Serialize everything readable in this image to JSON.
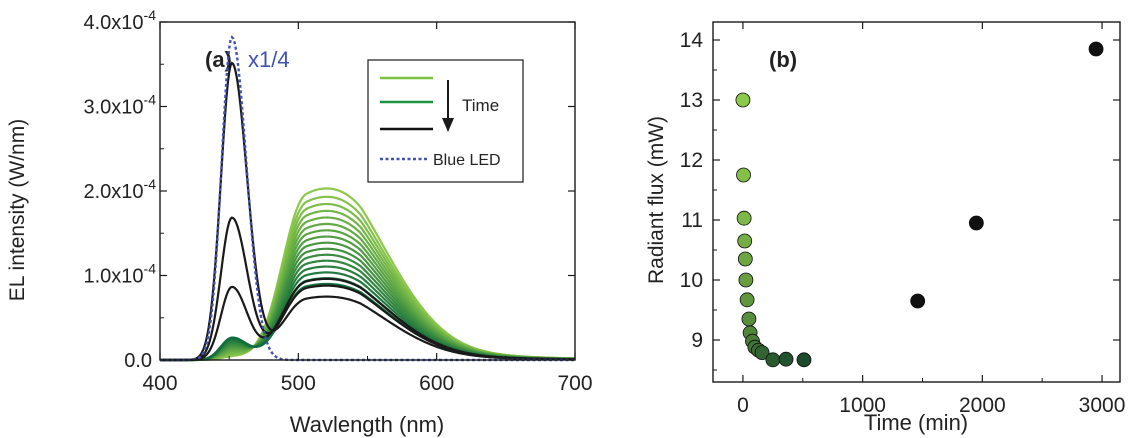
{
  "chart_data": [
    {
      "type": "line",
      "panel_label": "(a)",
      "xlabel": "Wavlength (nm)",
      "ylabel": "EL intensity (W/nm)",
      "xlim": [
        400,
        700
      ],
      "ylim": [
        0,
        0.0004
      ],
      "x_ticks": [
        400,
        500,
        600,
        700
      ],
      "x_tick_labels": [
        "400",
        "500",
        "600",
        "700"
      ],
      "y_ticks": [
        0,
        0.0001,
        0.0002,
        0.0003,
        0.0004
      ],
      "y_tick_labels": [
        {
          "base": "0.0",
          "exp": ""
        },
        {
          "base": "1.0x10",
          "exp": "-4"
        },
        {
          "base": "2.0x10",
          "exp": "-4"
        },
        {
          "base": "3.0x10",
          "exp": "-4"
        },
        {
          "base": "4.0x10",
          "exp": "-4"
        }
      ],
      "annotation": "x1/4",
      "legend": {
        "placement": "top-right",
        "arrow_label": "Time",
        "blue_label": "Blue LED",
        "sample_colors": [
          "#7cc242",
          "#1f9440",
          "#111111"
        ]
      },
      "colors": {
        "blue": "#4152b3",
        "green_start": "#8cc84a",
        "green_end": "#116d3b",
        "black": "#1a1a1a"
      },
      "blue_led": {
        "name": "Blue LED",
        "style": "dotted",
        "scale": "x1/4",
        "peak_x": 452,
        "peak_y": 0.000382
      },
      "green_curves": {
        "count": 16,
        "peak_x": 506,
        "peak_y_range": [
          0.000203,
          9e-05
        ],
        "blue_residual_range": [
          3.5e-06,
          2.6e-05
        ]
      },
      "black_curves": [
        {
          "blue_peak_y": 0.000351,
          "green_peak_y": 7.5e-05
        },
        {
          "blue_peak_y": 0.000168,
          "green_peak_y": 8.8e-05
        },
        {
          "blue_peak_y": 8.6e-05,
          "green_peak_y": 9.6e-05
        }
      ]
    },
    {
      "type": "scatter",
      "panel_label": "(b)",
      "xlabel": "Time (min)",
      "ylabel": "Radiant flux (mW)",
      "xlim": [
        -250,
        3150
      ],
      "ylim": [
        8.3,
        14.3
      ],
      "x_ticks": [
        0,
        1000,
        2000,
        3000
      ],
      "x_tick_labels": [
        "0",
        "1000",
        "2000",
        "3000"
      ],
      "y_ticks": [
        9,
        10,
        11,
        12,
        13,
        14
      ],
      "y_tick_labels": [
        "9",
        "10",
        "11",
        "12",
        "13",
        "14"
      ],
      "points": [
        {
          "x": 0,
          "y": 13.0
        },
        {
          "x": 5,
          "y": 11.75
        },
        {
          "x": 10,
          "y": 11.03
        },
        {
          "x": 15,
          "y": 10.65
        },
        {
          "x": 20,
          "y": 10.35
        },
        {
          "x": 25,
          "y": 10.0
        },
        {
          "x": 35,
          "y": 9.67
        },
        {
          "x": 50,
          "y": 9.35
        },
        {
          "x": 60,
          "y": 9.12
        },
        {
          "x": 80,
          "y": 8.98
        },
        {
          "x": 100,
          "y": 8.88
        },
        {
          "x": 130,
          "y": 8.83
        },
        {
          "x": 160,
          "y": 8.79
        },
        {
          "x": 250,
          "y": 8.67
        },
        {
          "x": 360,
          "y": 8.68
        },
        {
          "x": 510,
          "y": 8.67
        },
        {
          "x": 1460,
          "y": 9.65
        },
        {
          "x": 1950,
          "y": 10.95
        },
        {
          "x": 2950,
          "y": 13.85
        }
      ]
    }
  ]
}
